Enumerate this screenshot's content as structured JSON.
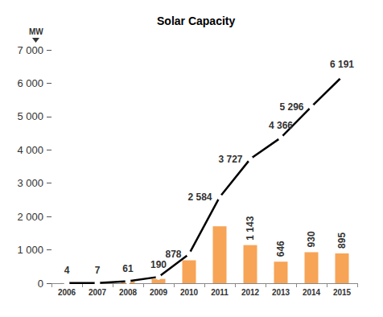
{
  "chart_data": {
    "type": "bar",
    "title": "Solar Capacity",
    "y_label": "MW",
    "categories": [
      "2006",
      "2007",
      "2008",
      "2009",
      "2010",
      "2011",
      "2012",
      "2013",
      "2014",
      "2015"
    ],
    "series": [
      {
        "type": "bar",
        "color": "#f7a456",
        "data_labels": true,
        "values": [
          4,
          3,
          54,
          129,
          688,
          1706,
          1143,
          646,
          930,
          895
        ],
        "value_labels": [
          null,
          null,
          null,
          null,
          null,
          null,
          "1 143",
          "646",
          "930",
          "895"
        ]
      },
      {
        "type": "line",
        "color": "#000000",
        "marker": "circle",
        "data_labels": true,
        "values": [
          4,
          7,
          61,
          190,
          878,
          2584,
          3727,
          4366,
          5296,
          6191
        ],
        "value_labels": [
          "4",
          "7",
          "61",
          "190",
          "878",
          "2 584",
          "3 727",
          "4 366",
          "5 296",
          "6 191"
        ]
      }
    ],
    "ylim": [
      0,
      7000
    ],
    "yticks": [
      0,
      {
        "value": 1000,
        "label": "1 000"
      },
      {
        "value": 2000,
        "label": "2 000"
      },
      {
        "value": 3000,
        "label": "3 000"
      },
      {
        "value": 4000,
        "label": "4 000"
      },
      {
        "value": 5000,
        "label": "5 000"
      },
      {
        "value": 6000,
        "label": "6 000"
      },
      {
        "value": 7000,
        "label": "7 000"
      }
    ],
    "grid": false
  }
}
